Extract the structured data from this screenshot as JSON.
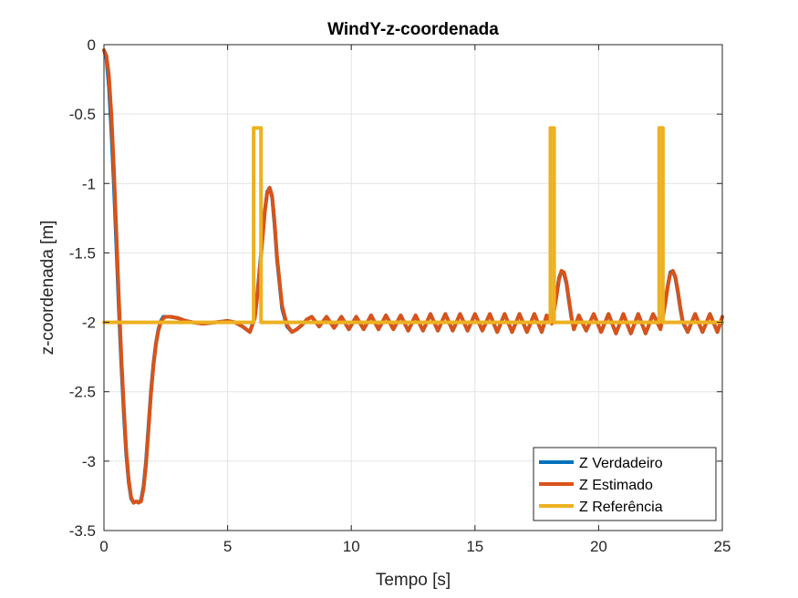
{
  "chart_data": {
    "type": "line",
    "title": "WindY-z-coordenada",
    "xlabel": "Tempo [s]",
    "ylabel": "z-coordenada [m]",
    "xlim": [
      0,
      25
    ],
    "ylim": [
      -3.5,
      0
    ],
    "xticks": [
      0,
      5,
      10,
      15,
      20,
      25
    ],
    "yticks": [
      0,
      -0.5,
      -1,
      -1.5,
      -2,
      -2.5,
      -3,
      -3.5
    ],
    "xtick_labels": [
      "0",
      "5",
      "10",
      "15",
      "20",
      "25"
    ],
    "ytick_labels": [
      "0",
      "-0.5",
      "-1",
      "-1.5",
      "-2",
      "-2.5",
      "-3",
      "-3.5"
    ],
    "grid": true,
    "legend_position": "bottom-right",
    "series": [
      {
        "name": "Z Verdadeiro",
        "color": "#0072BD",
        "x": [
          0,
          0.1,
          0.2,
          0.3,
          0.4,
          0.5,
          0.6,
          0.7,
          0.8,
          0.9,
          1.0,
          1.1,
          1.2,
          1.3,
          1.4,
          1.5,
          1.6,
          1.7,
          1.8,
          1.9,
          2.0,
          2.1,
          2.2,
          2.3,
          2.4,
          2.5,
          2.7,
          3.0,
          3.3,
          3.6,
          4.0,
          4.5,
          5.0,
          5.3,
          5.6,
          5.9,
          6.1,
          6.2,
          6.3,
          6.4,
          6.5,
          6.6,
          6.7,
          6.8,
          6.9,
          7.0,
          7.2,
          7.4,
          7.6,
          7.8,
          8.0,
          8.2,
          8.4,
          8.7,
          9.0,
          9.3,
          9.6,
          9.9,
          10.2,
          10.5,
          10.8,
          11.1,
          11.4,
          11.7,
          12.0,
          12.3,
          12.6,
          12.9,
          13.2,
          13.5,
          13.8,
          14.1,
          14.4,
          14.7,
          15.0,
          15.3,
          15.6,
          15.9,
          16.2,
          16.5,
          16.8,
          17.1,
          17.4,
          17.7,
          17.9,
          18.1,
          18.2,
          18.3,
          18.4,
          18.5,
          18.6,
          18.7,
          18.8,
          18.9,
          19.0,
          19.2,
          19.5,
          19.8,
          20.1,
          20.4,
          20.7,
          21.0,
          21.3,
          21.6,
          21.9,
          22.2,
          22.5,
          22.6,
          22.7,
          22.8,
          22.9,
          23.0,
          23.1,
          23.2,
          23.3,
          23.4,
          23.6,
          23.9,
          24.2,
          24.5,
          24.8,
          25.0
        ],
        "values": [
          -0.04,
          -0.1,
          -0.3,
          -0.62,
          -1.0,
          -1.45,
          -1.9,
          -2.3,
          -2.65,
          -2.95,
          -3.15,
          -3.27,
          -3.3,
          -3.29,
          -3.3,
          -3.28,
          -3.18,
          -3.0,
          -2.75,
          -2.5,
          -2.3,
          -2.15,
          -2.05,
          -1.99,
          -1.96,
          -1.96,
          -1.96,
          -1.97,
          -1.99,
          -2.0,
          -2.01,
          -2.0,
          -1.99,
          -2.0,
          -2.03,
          -2.07,
          -1.96,
          -1.8,
          -1.6,
          -1.4,
          -1.2,
          -1.06,
          -1.03,
          -1.1,
          -1.3,
          -1.55,
          -1.9,
          -2.03,
          -2.07,
          -2.05,
          -2.02,
          -1.98,
          -1.96,
          -2.03,
          -1.96,
          -2.04,
          -1.96,
          -2.05,
          -1.96,
          -2.05,
          -1.95,
          -2.05,
          -1.95,
          -2.05,
          -1.95,
          -2.06,
          -1.95,
          -2.06,
          -1.94,
          -2.06,
          -1.94,
          -2.06,
          -1.94,
          -2.06,
          -1.94,
          -2.06,
          -1.94,
          -2.07,
          -1.94,
          -2.07,
          -1.94,
          -2.07,
          -1.94,
          -2.07,
          -1.95,
          -2.0,
          -1.9,
          -1.8,
          -1.68,
          -1.63,
          -1.65,
          -1.72,
          -1.85,
          -1.97,
          -2.05,
          -1.95,
          -2.06,
          -1.94,
          -2.07,
          -1.94,
          -2.08,
          -1.94,
          -2.08,
          -1.94,
          -2.08,
          -1.94,
          -2.04,
          -1.95,
          -1.85,
          -1.73,
          -1.64,
          -1.63,
          -1.68,
          -1.78,
          -1.9,
          -2.0,
          -2.07,
          -1.94,
          -2.07,
          -1.94,
          -2.07,
          -1.96
        ]
      },
      {
        "name": "Z Estimado",
        "color": "#D95319",
        "x": [
          0,
          0.1,
          0.2,
          0.3,
          0.4,
          0.5,
          0.6,
          0.7,
          0.8,
          0.9,
          1.0,
          1.1,
          1.2,
          1.3,
          1.4,
          1.5,
          1.6,
          1.7,
          1.8,
          1.9,
          2.0,
          2.1,
          2.2,
          2.3,
          2.4,
          2.5,
          2.7,
          3.0,
          3.3,
          3.6,
          4.0,
          4.5,
          5.0,
          5.3,
          5.6,
          5.9,
          6.1,
          6.2,
          6.3,
          6.4,
          6.5,
          6.6,
          6.7,
          6.8,
          6.9,
          7.0,
          7.2,
          7.4,
          7.6,
          7.8,
          8.0,
          8.2,
          8.4,
          8.7,
          9.0,
          9.3,
          9.6,
          9.9,
          10.2,
          10.5,
          10.8,
          11.1,
          11.4,
          11.7,
          12.0,
          12.3,
          12.6,
          12.9,
          13.2,
          13.5,
          13.8,
          14.1,
          14.4,
          14.7,
          15.0,
          15.3,
          15.6,
          15.9,
          16.2,
          16.5,
          16.8,
          17.1,
          17.4,
          17.7,
          17.9,
          18.1,
          18.2,
          18.3,
          18.4,
          18.5,
          18.6,
          18.7,
          18.8,
          18.9,
          19.0,
          19.2,
          19.5,
          19.8,
          20.1,
          20.4,
          20.7,
          21.0,
          21.3,
          21.6,
          21.9,
          22.2,
          22.5,
          22.6,
          22.7,
          22.8,
          22.9,
          23.0,
          23.1,
          23.2,
          23.3,
          23.4,
          23.6,
          23.9,
          24.2,
          24.5,
          24.8,
          25.0
        ],
        "values": [
          -0.04,
          -0.08,
          -0.22,
          -0.5,
          -0.88,
          -1.35,
          -1.82,
          -2.24,
          -2.6,
          -2.92,
          -3.13,
          -3.26,
          -3.3,
          -3.29,
          -3.3,
          -3.29,
          -3.2,
          -3.03,
          -2.78,
          -2.52,
          -2.32,
          -2.16,
          -2.06,
          -2.0,
          -1.97,
          -1.96,
          -1.96,
          -1.97,
          -1.99,
          -2.0,
          -2.01,
          -2.0,
          -1.99,
          -2.0,
          -2.03,
          -2.07,
          -1.97,
          -1.82,
          -1.62,
          -1.42,
          -1.21,
          -1.07,
          -1.03,
          -1.09,
          -1.28,
          -1.53,
          -1.88,
          -2.02,
          -2.07,
          -2.05,
          -2.02,
          -1.98,
          -1.96,
          -2.03,
          -1.96,
          -2.04,
          -1.96,
          -2.05,
          -1.96,
          -2.05,
          -1.95,
          -2.05,
          -1.95,
          -2.05,
          -1.95,
          -2.06,
          -1.95,
          -2.06,
          -1.94,
          -2.06,
          -1.94,
          -2.06,
          -1.94,
          -2.06,
          -1.94,
          -2.06,
          -1.94,
          -2.07,
          -1.94,
          -2.07,
          -1.94,
          -2.07,
          -1.94,
          -2.07,
          -1.95,
          -2.01,
          -1.92,
          -1.81,
          -1.69,
          -1.63,
          -1.64,
          -1.71,
          -1.84,
          -1.96,
          -2.05,
          -1.95,
          -2.06,
          -1.94,
          -2.07,
          -1.94,
          -2.08,
          -1.94,
          -2.08,
          -1.94,
          -2.08,
          -1.94,
          -2.05,
          -1.96,
          -1.86,
          -1.74,
          -1.65,
          -1.63,
          -1.67,
          -1.77,
          -1.89,
          -1.99,
          -2.07,
          -1.94,
          -2.07,
          -1.94,
          -2.07,
          -1.96
        ]
      },
      {
        "name": "Z Referência",
        "color": "#EDB120",
        "x": [
          0,
          6.05,
          6.05,
          6.1,
          6.3,
          6.35,
          6.35,
          18.05,
          18.05,
          18.1,
          18.15,
          18.2,
          18.2,
          22.45,
          22.45,
          22.5,
          22.55,
          22.6,
          22.6,
          25
        ],
        "values": [
          -2,
          -2,
          -0.6,
          -0.6,
          -0.6,
          -0.6,
          -2,
          -2,
          -0.6,
          -0.6,
          -0.6,
          -0.6,
          -2,
          -2,
          -0.6,
          -0.6,
          -0.6,
          -0.6,
          -2,
          -2
        ]
      }
    ]
  }
}
